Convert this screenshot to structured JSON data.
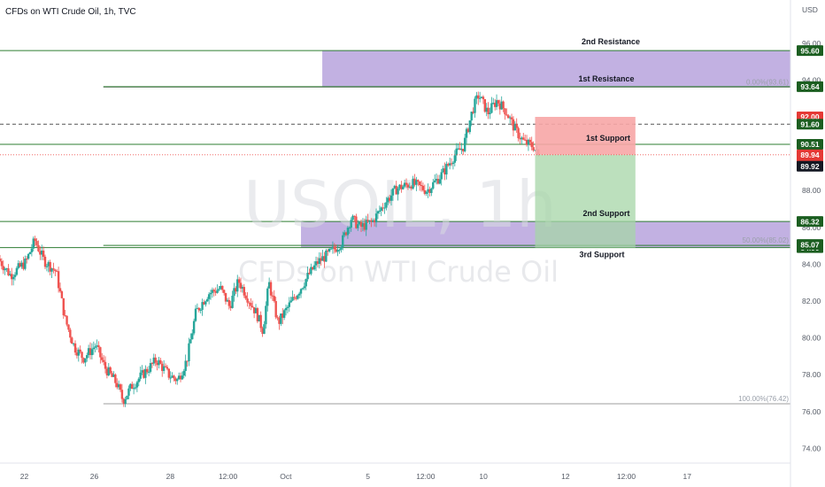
{
  "header": {
    "title": "CFDs on WTI Crude Oil, 1h, TVC",
    "currency": "USD"
  },
  "watermark": {
    "symbol": "USOIL, 1h",
    "description": "CFDs on WTI Crude Oil"
  },
  "colors": {
    "up": "#26a69a",
    "down": "#ef5350",
    "level_line": "#2e7d32",
    "zone": "#b39ddb",
    "stop_zone": "#f7a6a6",
    "target_zone": "#a5d6a7",
    "tag_green": "#1b5e20",
    "tag_black": "#131722",
    "tag_red": "#e53935",
    "fib_line": "#9e9e9e"
  },
  "chart_data": {
    "type": "candlestick",
    "symbol": "USOIL",
    "interval": "1h",
    "y_axis": {
      "min": 73.2,
      "max": 97.0,
      "ticks": [
        "74.00",
        "76.00",
        "78.00",
        "80.00",
        "82.00",
        "84.00",
        "86.00",
        "88.00",
        "90.00",
        "92.00",
        "94.00",
        "96.00"
      ]
    },
    "x_axis_ticks": [
      {
        "label": "22",
        "t": 0.8
      },
      {
        "label": "26",
        "t": 3.1
      },
      {
        "label": "28",
        "t": 5.6
      },
      {
        "label": "12:00",
        "t": 7.5
      },
      {
        "label": "Oct",
        "t": 9.4
      },
      {
        "label": "5",
        "t": 12.1
      },
      {
        "label": "12:00",
        "t": 14.0
      },
      {
        "label": "10",
        "t": 15.9
      },
      {
        "label": "12",
        "t": 18.6
      },
      {
        "label": "12:00",
        "t": 20.6
      },
      {
        "label": "17",
        "t": 22.6
      }
    ],
    "x_range": [
      0,
      26
    ],
    "price_path": [
      [
        0.0,
        84.3
      ],
      [
        0.4,
        83.4
      ],
      [
        0.9,
        84.1
      ],
      [
        1.2,
        85.3
      ],
      [
        1.5,
        84.2
      ],
      [
        1.9,
        83.6
      ],
      [
        2.2,
        81.0
      ],
      [
        2.5,
        79.5
      ],
      [
        2.8,
        78.9
      ],
      [
        3.2,
        79.6
      ],
      [
        3.5,
        78.4
      ],
      [
        3.9,
        77.5
      ],
      [
        4.1,
        76.6
      ],
      [
        4.4,
        77.4
      ],
      [
        4.8,
        78.1
      ],
      [
        5.2,
        78.8
      ],
      [
        5.6,
        78.0
      ],
      [
        5.9,
        77.7
      ],
      [
        6.2,
        78.8
      ],
      [
        6.5,
        81.4
      ],
      [
        6.9,
        82.4
      ],
      [
        7.3,
        82.7
      ],
      [
        7.6,
        81.7
      ],
      [
        7.9,
        83.1
      ],
      [
        8.2,
        82.2
      ],
      [
        8.5,
        81.3
      ],
      [
        8.7,
        80.4
      ],
      [
        8.9,
        83.0
      ],
      [
        9.2,
        80.8
      ],
      [
        9.5,
        81.6
      ],
      [
        9.9,
        82.6
      ],
      [
        10.2,
        83.4
      ],
      [
        10.5,
        84.1
      ],
      [
        10.9,
        84.6
      ],
      [
        11.3,
        85.2
      ],
      [
        11.6,
        86.5
      ],
      [
        11.9,
        86.0
      ],
      [
        12.3,
        86.3
      ],
      [
        12.7,
        87.3
      ],
      [
        13.1,
        88.1
      ],
      [
        13.6,
        88.4
      ],
      [
        14.1,
        88.0
      ],
      [
        14.6,
        88.9
      ],
      [
        15.0,
        89.9
      ],
      [
        15.3,
        90.4
      ],
      [
        15.6,
        92.4
      ],
      [
        15.8,
        93.2
      ],
      [
        16.1,
        92.2
      ],
      [
        16.4,
        92.9
      ],
      [
        16.7,
        92.3
      ],
      [
        17.0,
        91.3
      ],
      [
        17.3,
        90.6
      ],
      [
        17.6,
        90.4
      ],
      [
        17.75,
        89.9
      ]
    ],
    "levels": [
      {
        "price": 95.6,
        "x_start": 0,
        "label": "2nd Resistance",
        "tag": "95.60",
        "tag_style": "green"
      },
      {
        "price": 93.64,
        "x_start": 3.4,
        "label": "1st Resistance",
        "tag": "93.64",
        "tag_style": "green"
      },
      {
        "price": 90.51,
        "x_start": 0,
        "label": "1st Support",
        "tag": "90.51",
        "tag_style": "green"
      },
      {
        "price": 86.32,
        "x_start": 0,
        "label": "2nd Support",
        "tag": "86.32",
        "tag_style": "green"
      },
      {
        "price": 84.9,
        "x_start": 0,
        "label": "3rd Support",
        "tag": "84.90",
        "tag_style": "green"
      }
    ],
    "zones": [
      {
        "name": "resistance-zone",
        "from": 93.64,
        "to": 95.6,
        "x_start": 10.6,
        "x_end": 26
      },
      {
        "name": "support-zone",
        "from": 84.9,
        "to": 86.32,
        "x_start": 9.9,
        "x_end": 26
      }
    ],
    "position": {
      "entry": 89.94,
      "stop": 92.0,
      "target": 84.9,
      "x_start": 17.6,
      "x_end": 20.9
    },
    "fibonacci": [
      {
        "label": "0.00%(93.61)",
        "price": 93.61,
        "x_start": 3.4
      },
      {
        "label": "50.00%(85.02)",
        "price": 85.02,
        "x_start": 3.4
      },
      {
        "label": "100.00%(76.42)",
        "price": 76.42,
        "x_start": 3.4
      }
    ],
    "dashed_level": {
      "price": 91.6,
      "tag": "91.60"
    },
    "price_tags": [
      {
        "value": "92.00",
        "price": 92.0,
        "style": "red"
      },
      {
        "value": "91.60",
        "price": 91.6,
        "style": "green"
      },
      {
        "value": "89.94",
        "price": 89.94,
        "style": "red",
        "sub": "22:43"
      },
      {
        "value": "89.92",
        "price": 89.32,
        "style": "black"
      },
      {
        "value": "85.07",
        "price": 85.07,
        "style": "green"
      }
    ]
  }
}
